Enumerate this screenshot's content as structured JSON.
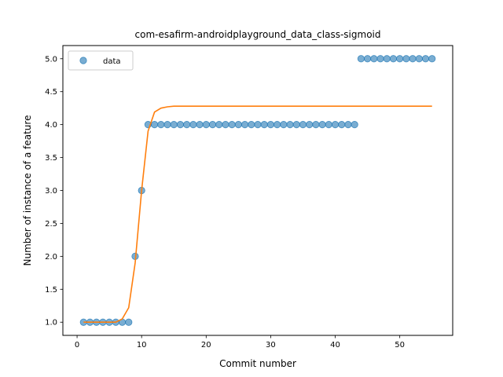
{
  "chart_data": {
    "type": "scatter",
    "title": "com-esafirm-androidplayground_data_class-sigmoid",
    "xlabel": "Commit number",
    "ylabel": "Number of instance of a feature",
    "xlim": [
      -2.2,
      58.2
    ],
    "ylim": [
      0.8,
      5.2
    ],
    "xticks": [
      0,
      10,
      20,
      30,
      40,
      50
    ],
    "yticks": [
      1.0,
      1.5,
      2.0,
      2.5,
      3.0,
      3.5,
      4.0,
      4.5,
      5.0
    ],
    "ytick_labels": [
      "1.0",
      "1.5",
      "2.0",
      "2.5",
      "3.0",
      "3.5",
      "4.0",
      "4.5",
      "5.0"
    ],
    "grid": false,
    "legend": {
      "location": "upper-left",
      "entries": [
        "data"
      ]
    },
    "series": [
      {
        "name": "data",
        "kind": "scatter",
        "color": "#1f77b4",
        "x": [
          1,
          2,
          3,
          4,
          5,
          6,
          7,
          8,
          9,
          10,
          11,
          12,
          13,
          14,
          15,
          16,
          17,
          18,
          19,
          20,
          21,
          22,
          23,
          24,
          25,
          26,
          27,
          28,
          29,
          30,
          31,
          32,
          33,
          34,
          35,
          36,
          37,
          38,
          39,
          40,
          41,
          42,
          43,
          44,
          45,
          46,
          47,
          48,
          49,
          50,
          51,
          52,
          53,
          54,
          55
        ],
        "y": [
          1,
          1,
          1,
          1,
          1,
          1,
          1,
          1,
          2,
          3,
          4,
          4,
          4,
          4,
          4,
          4,
          4,
          4,
          4,
          4,
          4,
          4,
          4,
          4,
          4,
          4,
          4,
          4,
          4,
          4,
          4,
          4,
          4,
          4,
          4,
          4,
          4,
          4,
          4,
          4,
          4,
          4,
          4,
          5,
          5,
          5,
          5,
          5,
          5,
          5,
          5,
          5,
          5,
          5,
          5
        ]
      },
      {
        "kind": "line",
        "color": "#ff7f0e",
        "x": [
          1,
          2,
          3,
          4,
          5,
          6,
          7,
          8,
          9,
          10,
          11,
          12,
          13,
          14,
          15,
          16,
          17,
          18,
          19,
          20,
          25,
          30,
          35,
          40,
          45,
          50,
          55
        ],
        "y": [
          1.0,
          1.0,
          1.0,
          1.0,
          1.0,
          1.0,
          1.05,
          1.22,
          1.9,
          3.0,
          3.9,
          4.19,
          4.25,
          4.27,
          4.28,
          4.28,
          4.28,
          4.28,
          4.28,
          4.28,
          4.28,
          4.28,
          4.28,
          4.28,
          4.28,
          4.28,
          4.28
        ]
      }
    ]
  }
}
